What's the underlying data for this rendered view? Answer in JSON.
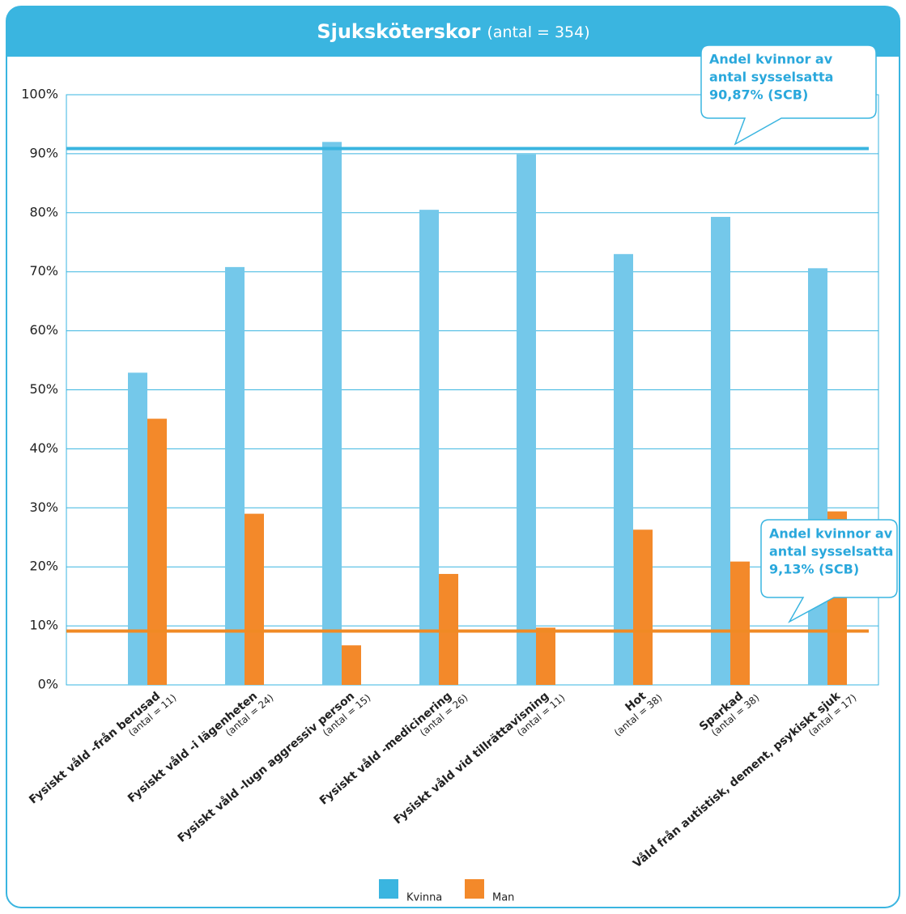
{
  "chart_data": {
    "type": "bar",
    "title": "Sjuksköterskor",
    "subtitle": "(antal = 354)",
    "categories": [
      "Fysiskt våld -från berusad",
      "Fysiskt våld -i lägenheten",
      "Fysiskt våld -lugn aggressiv person",
      "Fysiskt våld -medicinering",
      "Fysiskt våld vid tillrättavisning",
      "Hot",
      "Sparkad",
      "Våld från autistisk, dement, psykiskt sjuk"
    ],
    "category_notes": [
      "(antal = 11)",
      "(antal = 24)",
      "(antal = 15)",
      "(antal = 26)",
      "(antal = 11)",
      "(antal = 38)",
      "(antal = 38)",
      "(antal = 17)"
    ],
    "series": [
      {
        "name": "Kvinna",
        "color": "#74c8ea",
        "values": [
          52.9,
          70.8,
          92.0,
          80.5,
          89.9,
          73.0,
          79.3,
          70.6
        ]
      },
      {
        "name": "Man",
        "color": "#f3892a",
        "values": [
          45.1,
          29.0,
          6.7,
          18.8,
          9.7,
          26.3,
          20.9,
          29.4
        ]
      }
    ],
    "reference_lines": [
      {
        "value": 90.87,
        "color": "#3ab5e0",
        "annotation": [
          "Andel kvinnor av",
          "antal sysselsatta",
          "90,87% (SCB)"
        ]
      },
      {
        "value": 9.13,
        "color": "#f08a24",
        "annotation": [
          "Andel kvinnor av",
          "antal sysselsatta",
          "9,13% (SCB)"
        ]
      }
    ],
    "ylim": [
      0,
      100
    ],
    "yticks": [
      {
        "value": 0,
        "label": "0%"
      },
      {
        "value": 10,
        "label": "10%"
      },
      {
        "value": 20,
        "label": "20%"
      },
      {
        "value": 30,
        "label": "30%"
      },
      {
        "value": 40,
        "label": "40%"
      },
      {
        "value": 50,
        "label": "50%"
      },
      {
        "value": 60,
        "label": "60%"
      },
      {
        "value": 70,
        "label": "70%"
      },
      {
        "value": 80,
        "label": "80%"
      },
      {
        "value": 90,
        "label": "90%"
      },
      {
        "value": 100,
        "label": "100%"
      }
    ],
    "grid": true
  }
}
